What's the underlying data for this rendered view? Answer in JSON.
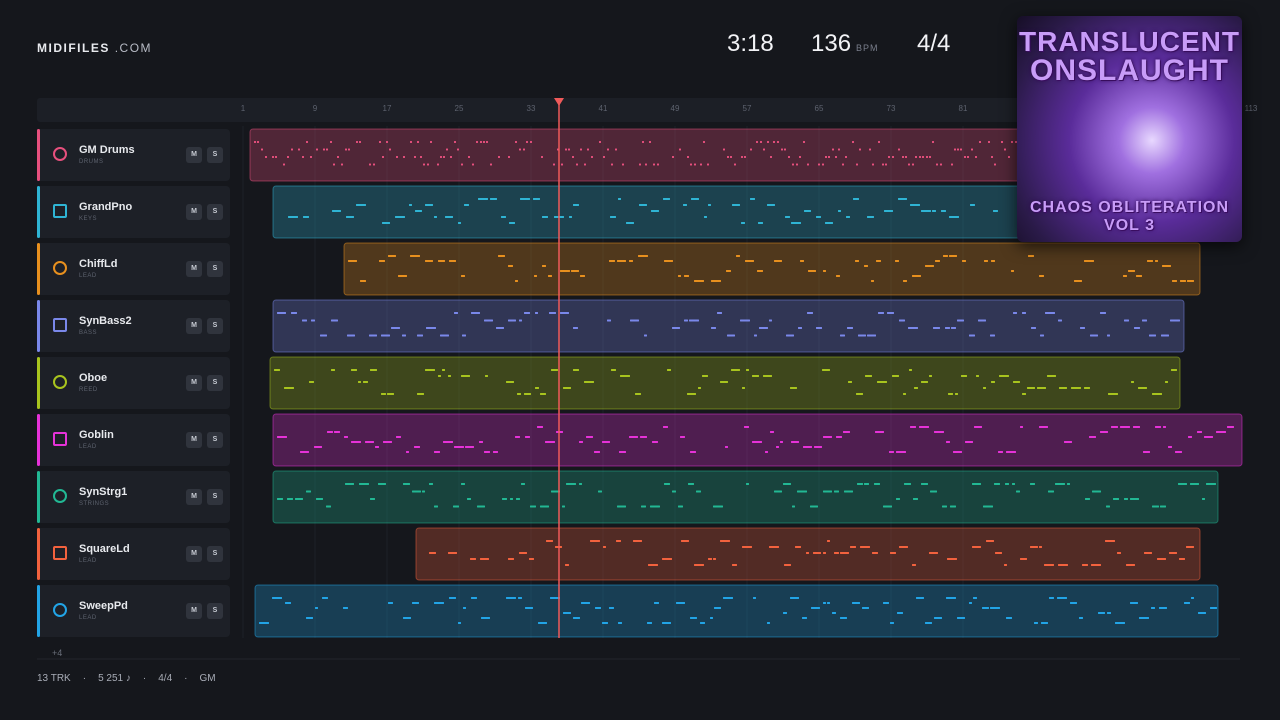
{
  "header": {
    "brand": "MIDIFILES",
    "brand_suffix": ".COM",
    "time": "3:18",
    "tempo": "136",
    "tempo_unit": "BPM",
    "meter": "4/4"
  },
  "cover": {
    "title_lines": [
      "TRANSLUCENT",
      "ONSLAUGHT"
    ],
    "subtitle": "CHAOS OBLITERATION VOL 3"
  },
  "ruler": {
    "labels": [
      "1",
      "9",
      "17",
      "25",
      "33",
      "41",
      "49",
      "57",
      "65",
      "73",
      "81",
      "113"
    ]
  },
  "tracks": [
    {
      "name": "GM Drums",
      "category": "DRUMS",
      "mute": "M",
      "solo": "S",
      "color": "#e8507e"
    },
    {
      "name": "GrandPno",
      "category": "KEYS",
      "mute": "M",
      "solo": "S",
      "color": "#2fb4d4"
    },
    {
      "name": "ChiffLd",
      "category": "LEAD",
      "mute": "M",
      "solo": "S",
      "color": "#e8901e"
    },
    {
      "name": "SynBass2",
      "category": "BASS",
      "mute": "M",
      "solo": "S",
      "color": "#7a88ea"
    },
    {
      "name": "Oboe",
      "category": "REED",
      "mute": "M",
      "solo": "S",
      "color": "#a8c41e"
    },
    {
      "name": "Goblin",
      "category": "LEAD",
      "mute": "M",
      "solo": "S",
      "color": "#e632d8"
    },
    {
      "name": "SynStrg1",
      "category": "STRINGS",
      "mute": "M",
      "solo": "S",
      "color": "#22b894"
    },
    {
      "name": "SquareLd",
      "category": "LEAD",
      "mute": "M",
      "solo": "S",
      "color": "#f2623e"
    },
    {
      "name": "SweepPd",
      "category": "LEAD",
      "mute": "M",
      "solo": "S",
      "color": "#22a4e6"
    }
  ],
  "more_tracks": "+4",
  "footer": {
    "items": [
      "13 TRK",
      "5 251 ♪",
      "4/4",
      "GM"
    ]
  }
}
